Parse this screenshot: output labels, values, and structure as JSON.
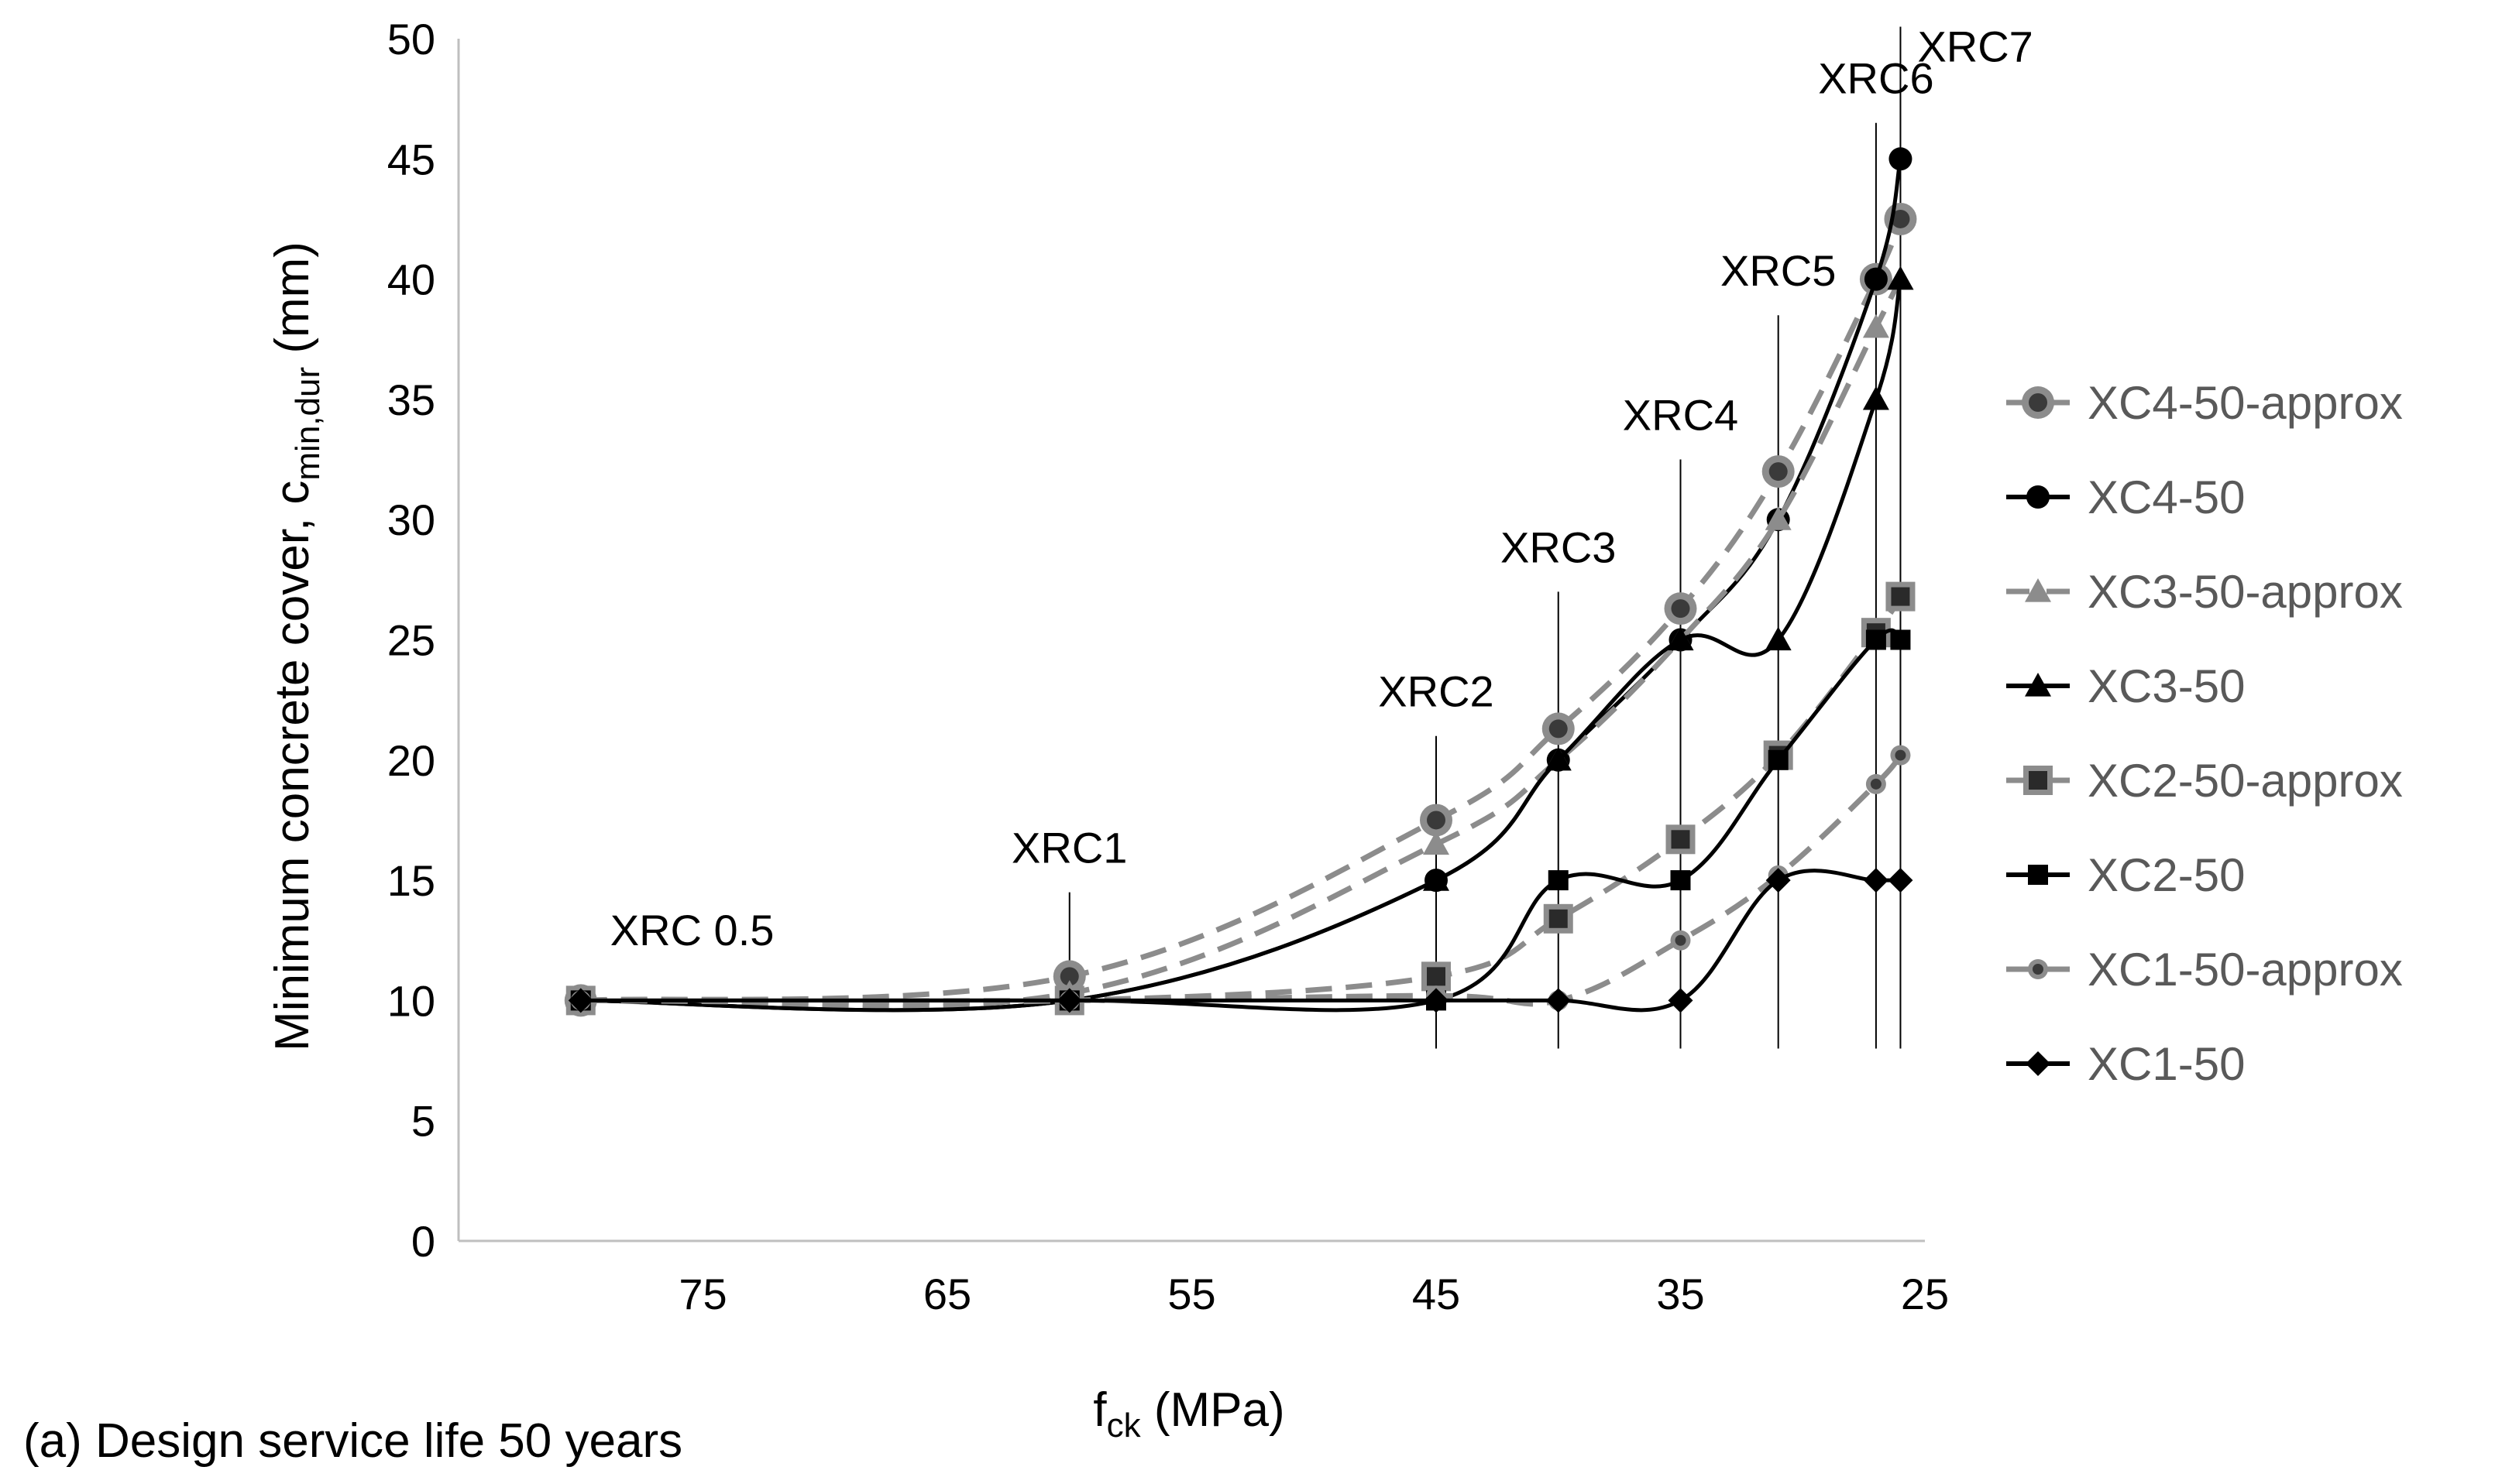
{
  "caption": "(a) Design service life 50 years",
  "chart_data": {
    "type": "line",
    "xlabel_main": "f",
    "xlabel_sub": "ck",
    "xlabel_unit": " (MPa)",
    "ylabel_main": "Minimum concrete cover, c",
    "ylabel_sub": "min,dur",
    "ylabel_unit": " (mm)",
    "x_reversed": true,
    "xlim": [
      25,
      85
    ],
    "ylim": [
      0,
      50
    ],
    "xticks": [
      75,
      65,
      55,
      45,
      35,
      25
    ],
    "yticks": [
      0,
      5,
      10,
      15,
      20,
      25,
      30,
      35,
      40,
      45,
      50
    ],
    "grid": false,
    "legend_position": "right",
    "colors": {
      "black": "#000000",
      "gray": "#8c8c8c",
      "axis": "#bfbfbf",
      "legend_text": "#595959"
    },
    "annotations": [
      {
        "label": "XRC 0.5",
        "x": 80,
        "y_top": null
      },
      {
        "label": "XRC1",
        "x": 60,
        "y_top": 14.5
      },
      {
        "label": "XRC2",
        "x": 45,
        "y_top": 21
      },
      {
        "label": "XRC3",
        "x": 40,
        "y_top": 27
      },
      {
        "label": "XRC4",
        "x": 35,
        "y_top": 32.5
      },
      {
        "label": "XRC5",
        "x": 31,
        "y_top": 38.5
      },
      {
        "label": "XRC6",
        "x": 27,
        "y_top": 46.5
      },
      {
        "label": "XRC7",
        "x": 26,
        "y_top": 50.5
      }
    ],
    "series": [
      {
        "name": "XC4-50-approx",
        "style": "dashed-gray",
        "marker": "circle-large",
        "x": [
          80,
          60,
          45,
          40,
          35,
          31,
          27,
          26
        ],
        "y": [
          10,
          11,
          17.5,
          21.3,
          26.3,
          32,
          40,
          42.5
        ]
      },
      {
        "name": "XC4-50",
        "style": "solid-black",
        "marker": "circle",
        "x": [
          80,
          60,
          45,
          40,
          35,
          31,
          27,
          26
        ],
        "y": [
          10,
          10,
          15,
          20,
          25,
          30,
          40,
          45
        ]
      },
      {
        "name": "XC3-50-approx",
        "style": "dashed-gray",
        "marker": "triangle",
        "x": [
          80,
          60,
          45,
          40,
          35,
          31,
          27,
          26
        ],
        "y": [
          10,
          10.3,
          16.5,
          20,
          25,
          30,
          38,
          40
        ]
      },
      {
        "name": "XC3-50",
        "style": "solid-black",
        "marker": "triangle",
        "x": [
          80,
          60,
          45,
          40,
          35,
          31,
          27,
          26
        ],
        "y": [
          10,
          10,
          15,
          20,
          25,
          25,
          35,
          40
        ]
      },
      {
        "name": "XC2-50-approx",
        "style": "dashed-gray",
        "marker": "square-fuzzy",
        "x": [
          80,
          60,
          45,
          40,
          35,
          31,
          27,
          26
        ],
        "y": [
          10,
          10,
          11,
          13.4,
          16.7,
          20.2,
          25.3,
          26.8
        ]
      },
      {
        "name": "XC2-50",
        "style": "solid-black",
        "marker": "square",
        "x": [
          80,
          60,
          45,
          40,
          35,
          31,
          27,
          26
        ],
        "y": [
          10,
          10,
          10,
          15,
          15,
          20,
          25,
          25
        ]
      },
      {
        "name": "XC1-50-approx",
        "style": "dashed-gray",
        "marker": "star",
        "x": [
          80,
          60,
          45,
          40,
          35,
          31,
          27,
          26
        ],
        "y": [
          10,
          10,
          10.2,
          10,
          12.5,
          15.2,
          19,
          20.2
        ]
      },
      {
        "name": "XC1-50",
        "style": "solid-black",
        "marker": "diamond",
        "x": [
          80,
          60,
          45,
          40,
          35,
          31,
          27,
          26
        ],
        "y": [
          10,
          10,
          10,
          10,
          10,
          15,
          15,
          15
        ]
      }
    ]
  }
}
